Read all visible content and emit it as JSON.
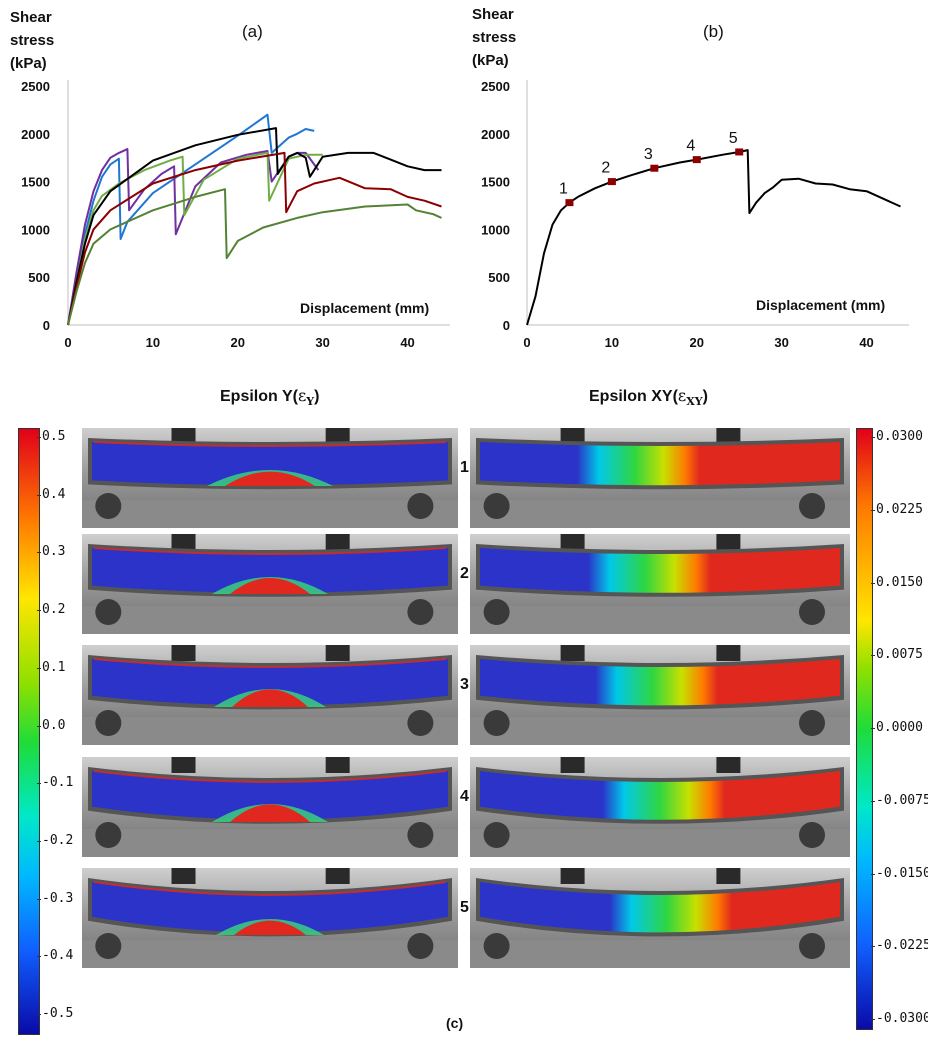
{
  "panel_a": {
    "letter": "(a)",
    "ylabel_lines": [
      "Shear",
      "stress",
      "(kPa)"
    ],
    "xlabel": "Displacement (mm)"
  },
  "panel_b": {
    "letter": "(b)",
    "ylabel_lines": [
      "Shear",
      "stress",
      "(kPa)"
    ],
    "xlabel": "Displacement (mm)"
  },
  "panel_c": {
    "label": "(c)",
    "title_left": "Epsilon Y(εY)",
    "title_left_main": "Epsilon Y(",
    "title_left_sym": "ε",
    "title_left_sub": "Y",
    "title_left_close": ")",
    "title_right_main": "Epsilon XY(",
    "title_right_sym": "ε",
    "title_right_sub": "XY",
    "title_right_close": ")",
    "row_numbers": [
      "1",
      "2",
      "3",
      "4",
      "5"
    ],
    "left_scale_ticks": [
      "0.5",
      "0.4",
      "0.3",
      "0.2",
      "0.1",
      "0.0",
      "-0.1",
      "-0.2",
      "-0.3",
      "-0.4",
      "-0.5"
    ],
    "right_scale_ticks": [
      "0.0300",
      "0.0225",
      "0.0150",
      "0.0075",
      "0.0000",
      "-0.0075",
      "-0.0150",
      "-0.0225",
      "-0.0300"
    ]
  },
  "colors": {
    "blue": "#1f77d4",
    "purple": "#7030a0",
    "olive": "#70ad47",
    "black": "#000000",
    "darkred": "#8b0000",
    "darkgreen": "#548235",
    "marker": "#8b0000",
    "strain_blue": "#2b33c8",
    "strain_red": "#e0281e"
  },
  "chart_data": [
    {
      "type": "line",
      "panel": "(a)",
      "xlabel": "Displacement (mm)",
      "ylabel": "Shear stress (kPa)",
      "xlim": [
        0,
        45
      ],
      "ylim": [
        0,
        2500
      ],
      "xticks": [
        "0",
        "10",
        "20",
        "30",
        "40"
      ],
      "yticks": [
        "0",
        "500",
        "1000",
        "1500",
        "2000",
        "2500"
      ],
      "series": [
        {
          "color": "#1f77d4",
          "x": [
            0,
            1,
            2,
            3,
            4,
            5,
            6,
            6.2,
            7,
            10,
            15,
            20,
            23.5,
            24,
            25,
            26,
            27,
            28,
            29
          ],
          "y": [
            0,
            500,
            950,
            1300,
            1550,
            1680,
            1740,
            900,
            1080,
            1380,
            1680,
            1980,
            2200,
            1800,
            1880,
            1960,
            2000,
            2050,
            2030
          ]
        },
        {
          "color": "#7030a0",
          "x": [
            0,
            1,
            2,
            3,
            4,
            5,
            6,
            7,
            7.2,
            9,
            11,
            12.5,
            12.7,
            15,
            18,
            21,
            23.5,
            24,
            26,
            27,
            28,
            29.5
          ],
          "y": [
            0,
            550,
            1050,
            1400,
            1620,
            1750,
            1800,
            1840,
            1200,
            1420,
            1580,
            1660,
            950,
            1450,
            1700,
            1780,
            1820,
            1500,
            1760,
            1800,
            1800,
            1620
          ]
        },
        {
          "color": "#70ad47",
          "x": [
            0,
            1,
            2,
            3,
            4,
            6,
            9,
            12,
            13.5,
            13.7,
            16,
            20,
            23.5,
            23.7,
            26,
            28,
            30
          ],
          "y": [
            0,
            450,
            900,
            1200,
            1350,
            1480,
            1620,
            1720,
            1760,
            1150,
            1520,
            1740,
            1800,
            1300,
            1740,
            1780,
            1780
          ]
        },
        {
          "color": "#000000",
          "x": [
            0,
            1,
            2,
            3,
            5,
            10,
            15,
            20,
            24.5,
            24.7,
            26,
            27,
            28,
            28.5,
            30,
            33,
            36,
            38,
            40,
            42,
            44
          ],
          "y": [
            0,
            450,
            850,
            1150,
            1400,
            1720,
            1880,
            1990,
            2060,
            1580,
            1760,
            1800,
            1750,
            1550,
            1760,
            1800,
            1800,
            1730,
            1660,
            1620,
            1620
          ]
        },
        {
          "color": "#8b0000",
          "x": [
            0,
            1,
            2,
            3,
            5,
            10,
            15,
            20,
            25.5,
            25.7,
            27,
            29,
            31,
            32,
            35,
            38,
            40,
            42,
            44
          ],
          "y": [
            0,
            400,
            760,
            1000,
            1200,
            1480,
            1620,
            1720,
            1800,
            1180,
            1400,
            1480,
            1520,
            1540,
            1430,
            1420,
            1340,
            1300,
            1240
          ]
        },
        {
          "color": "#548235",
          "x": [
            0,
            1,
            2,
            3,
            5,
            10,
            15,
            18.5,
            18.7,
            20,
            23,
            27,
            30,
            35,
            40,
            41,
            43,
            44
          ],
          "y": [
            0,
            350,
            650,
            850,
            1000,
            1200,
            1340,
            1420,
            700,
            880,
            1020,
            1120,
            1180,
            1240,
            1260,
            1200,
            1160,
            1120
          ]
        }
      ]
    },
    {
      "type": "line",
      "panel": "(b)",
      "xlabel": "Displacement (mm)",
      "ylabel": "Shear stress (kPa)",
      "xlim": [
        0,
        45
      ],
      "ylim": [
        0,
        2500
      ],
      "xticks": [
        "0",
        "10",
        "20",
        "30",
        "40"
      ],
      "yticks": [
        "0",
        "500",
        "1000",
        "1500",
        "2000",
        "2500"
      ],
      "series": [
        {
          "color": "#000000",
          "x": [
            0,
            1,
            2,
            3,
            4,
            5,
            6,
            8,
            10,
            12,
            15,
            18,
            20,
            23,
            25,
            26,
            26.2,
            27,
            28,
            29,
            30,
            32,
            34,
            36,
            38,
            40,
            42,
            44
          ],
          "y": [
            0,
            300,
            750,
            1050,
            1200,
            1280,
            1340,
            1430,
            1500,
            1560,
            1640,
            1700,
            1730,
            1780,
            1810,
            1830,
            1170,
            1280,
            1380,
            1440,
            1520,
            1530,
            1480,
            1470,
            1420,
            1400,
            1320,
            1240
          ]
        }
      ],
      "markers": [
        {
          "label": "1",
          "x": 5,
          "y": 1280
        },
        {
          "label": "2",
          "x": 10,
          "y": 1500
        },
        {
          "label": "3",
          "x": 15,
          "y": 1640
        },
        {
          "label": "4",
          "x": 20,
          "y": 1730
        },
        {
          "label": "5",
          "x": 25,
          "y": 1810
        }
      ]
    }
  ]
}
